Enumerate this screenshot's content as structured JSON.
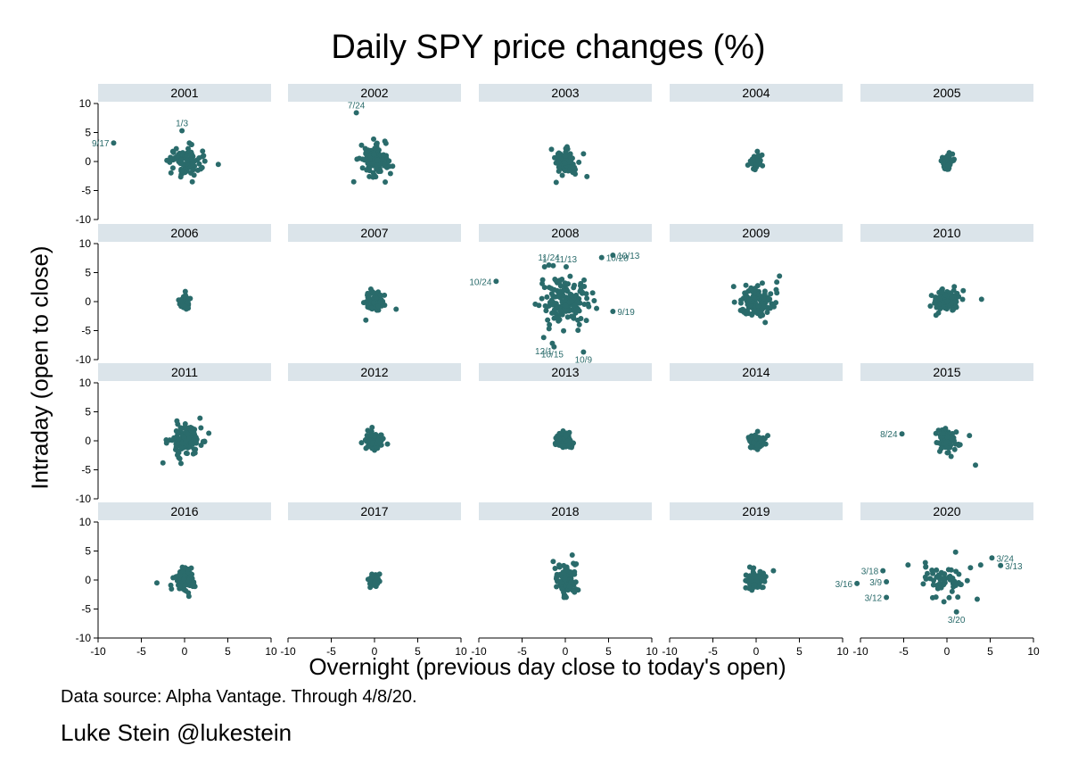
{
  "title": "Daily SPY price changes (%)",
  "footer": {
    "source": "Data source: Alpha Vantage. Through 4/8/20.",
    "credit": "Luke Stein @lukestein"
  },
  "colors": {
    "points": "#2a6b6b",
    "strip_bg": "#dbe4ea"
  },
  "chart_data": {
    "type": "scatter",
    "xlabel": "Overnight (previous day close to today's open)",
    "ylabel": "Intraday (open to close)",
    "xlim": [
      -10,
      10
    ],
    "ylim": [
      -10,
      10
    ],
    "xticks": [
      -10,
      -5,
      0,
      5,
      10
    ],
    "yticks": [
      10,
      5,
      0,
      -5,
      -10
    ],
    "grid": false,
    "panels": [
      {
        "year": "2001",
        "spread": [
          0.9,
          1.4
        ],
        "n": 90,
        "extra": [
          [
            -8.2,
            3.2
          ],
          [
            -0.3,
            5.3
          ],
          [
            3.9,
            -0.5
          ],
          [
            2.2,
            1.0
          ]
        ],
        "labels": [
          {
            "text": "9/17",
            "x": -8.2,
            "y": 3.2
          },
          {
            "text": "1/3",
            "x": -0.3,
            "y": 5.3
          }
        ]
      },
      {
        "year": "2002",
        "spread": [
          0.8,
          1.3
        ],
        "n": 110,
        "extra": [
          [
            -2.1,
            8.4
          ],
          [
            -1.5,
            2.8
          ],
          [
            1.2,
            3.5
          ]
        ],
        "labels": [
          {
            "text": "7/24",
            "x": -2.1,
            "y": 8.4
          }
        ]
      },
      {
        "year": "2003",
        "spread": [
          0.7,
          1.2
        ],
        "n": 80,
        "extra": [
          [
            2.5,
            -2.6
          ],
          [
            -1.6,
            2.1
          ]
        ],
        "labels": []
      },
      {
        "year": "2004",
        "spread": [
          0.35,
          0.6
        ],
        "n": 60,
        "extra": [],
        "labels": []
      },
      {
        "year": "2005",
        "spread": [
          0.3,
          0.6
        ],
        "n": 60,
        "extra": [],
        "labels": []
      },
      {
        "year": "2006",
        "spread": [
          0.3,
          0.6
        ],
        "n": 60,
        "extra": [],
        "labels": []
      },
      {
        "year": "2007",
        "spread": [
          0.5,
          0.9
        ],
        "n": 80,
        "extra": [
          [
            2.5,
            -1.3
          ],
          [
            -1.0,
            -3.2
          ]
        ],
        "labels": []
      },
      {
        "year": "2008",
        "spread": [
          1.3,
          2.0
        ],
        "n": 150,
        "extra": [
          [
            -8.0,
            3.5
          ],
          [
            5.5,
            8.0
          ],
          [
            4.2,
            7.6
          ],
          [
            -2.4,
            6.0
          ],
          [
            -1.9,
            6.3
          ],
          [
            -1.4,
            6.2
          ],
          [
            0.1,
            6.0
          ],
          [
            5.5,
            -1.7
          ],
          [
            2.1,
            -8.7
          ],
          [
            -1.5,
            -7.2
          ],
          [
            -1.3,
            -7.8
          ],
          [
            -2.5,
            -6.2
          ]
        ],
        "labels": [
          {
            "text": "10/24",
            "x": -8.0,
            "y": 3.5
          },
          {
            "text": "10/28",
            "x": 4.2,
            "y": 7.6
          },
          {
            "text": "10/13",
            "x": 5.5,
            "y": 8.0
          },
          {
            "text": "1",
            "x": -2.4,
            "y": 6.0
          },
          {
            "text": "11/24",
            "x": -1.9,
            "y": 6.3
          },
          {
            "text": "11/13",
            "x": 0.1,
            "y": 6.0
          },
          {
            "text": "9/19",
            "x": 5.5,
            "y": -1.7
          },
          {
            "text": "12/1",
            "x": -2.5,
            "y": -7.2
          },
          {
            "text": "10/15",
            "x": -1.5,
            "y": -7.8
          },
          {
            "text": "10/9",
            "x": 2.1,
            "y": -8.7
          }
        ]
      },
      {
        "year": "2009",
        "spread": [
          1.0,
          1.4
        ],
        "n": 120,
        "extra": [
          [
            2.7,
            4.4
          ],
          [
            -2.6,
            2.6
          ]
        ],
        "labels": []
      },
      {
        "year": "2010",
        "spread": [
          0.8,
          1.0
        ],
        "n": 90,
        "extra": [
          [
            4.0,
            0.4
          ]
        ],
        "labels": []
      },
      {
        "year": "2011",
        "spread": [
          0.9,
          1.3
        ],
        "n": 120,
        "extra": [
          [
            -2.5,
            -3.8
          ],
          [
            2.8,
            1.3
          ]
        ],
        "labels": []
      },
      {
        "year": "2012",
        "spread": [
          0.5,
          0.8
        ],
        "n": 80,
        "extra": [],
        "labels": []
      },
      {
        "year": "2013",
        "spread": [
          0.45,
          0.7
        ],
        "n": 70,
        "extra": [],
        "labels": []
      },
      {
        "year": "2014",
        "spread": [
          0.45,
          0.7
        ],
        "n": 70,
        "extra": [],
        "labels": []
      },
      {
        "year": "2015",
        "spread": [
          0.6,
          0.9
        ],
        "n": 80,
        "extra": [
          [
            -5.2,
            1.2
          ],
          [
            3.3,
            -4.2
          ],
          [
            2.6,
            0.9
          ]
        ],
        "labels": [
          {
            "text": "8/24",
            "x": -5.2,
            "y": 1.2
          }
        ]
      },
      {
        "year": "2016",
        "spread": [
          0.6,
          0.9
        ],
        "n": 90,
        "extra": [
          [
            -3.2,
            -0.5
          ],
          [
            0.5,
            -2.8
          ]
        ],
        "labels": []
      },
      {
        "year": "2017",
        "spread": [
          0.3,
          0.5
        ],
        "n": 70,
        "extra": [],
        "labels": []
      },
      {
        "year": "2018",
        "spread": [
          0.6,
          1.4
        ],
        "n": 100,
        "extra": [
          [
            0.8,
            4.3
          ],
          [
            -1.4,
            3.2
          ]
        ],
        "labels": []
      },
      {
        "year": "2019",
        "spread": [
          0.6,
          0.8
        ],
        "n": 90,
        "extra": [
          [
            2.0,
            1.6
          ]
        ],
        "labels": []
      },
      {
        "year": "2020",
        "spread": [
          1.2,
          1.4
        ],
        "n": 55,
        "extra": [
          [
            -10.4,
            -0.6
          ],
          [
            -7.4,
            1.6
          ],
          [
            -7.0,
            -0.3
          ],
          [
            -7.0,
            -3.0
          ],
          [
            1.1,
            -5.5
          ],
          [
            5.2,
            3.8
          ],
          [
            6.2,
            2.5
          ],
          [
            -4.5,
            2.6
          ],
          [
            -2.5,
            3.0
          ],
          [
            3.5,
            -3.3
          ],
          [
            3.9,
            2.6
          ],
          [
            1.0,
            4.8
          ]
        ],
        "labels": [
          {
            "text": "3/16",
            "x": -10.4,
            "y": -0.6
          },
          {
            "text": "3/18",
            "x": -7.4,
            "y": 1.6
          },
          {
            "text": "3/9",
            "x": -7.0,
            "y": -0.3
          },
          {
            "text": "3/12",
            "x": -7.0,
            "y": -3.0
          },
          {
            "text": "3/20",
            "x": 1.1,
            "y": -5.5
          },
          {
            "text": "3/24",
            "x": 5.2,
            "y": 3.8
          },
          {
            "text": "3/13",
            "x": 6.2,
            "y": 2.5
          }
        ]
      }
    ]
  }
}
